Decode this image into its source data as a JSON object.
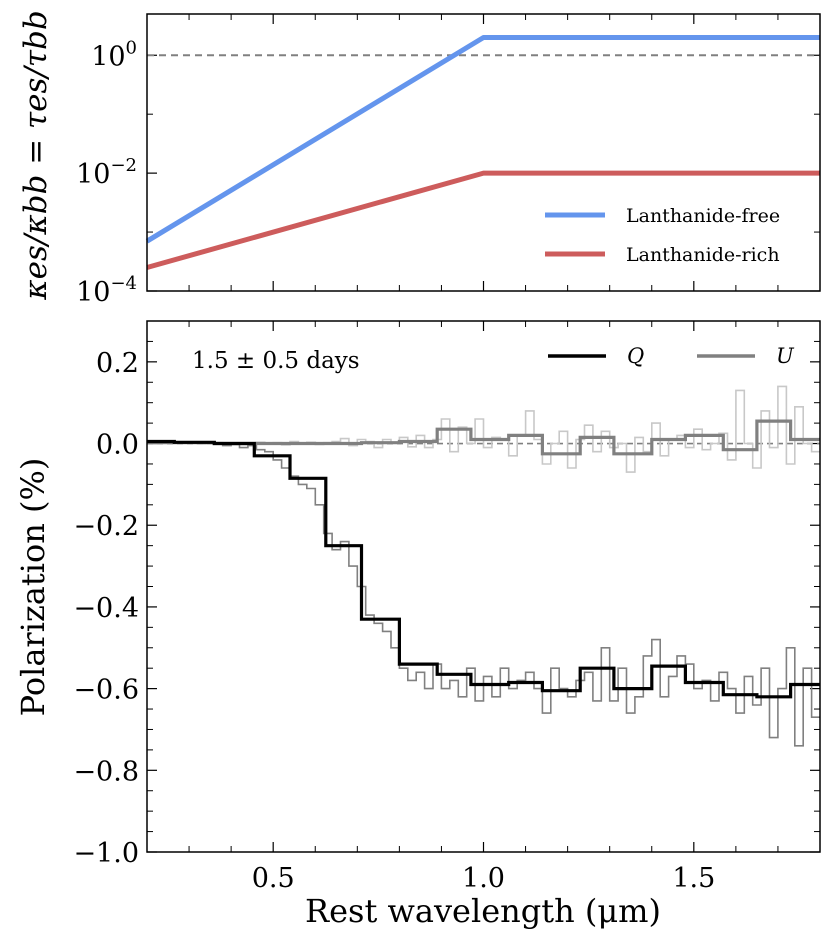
{
  "chart_data": [
    {
      "type": "line",
      "panel": "top",
      "yscale": "log",
      "xlim": [
        0.2,
        1.8
      ],
      "ylim_exp": [
        -4,
        0.7
      ],
      "ylabel": "κes/κbb = τes/τbb",
      "yticks": [
        {
          "exp": 0,
          "label": "10",
          "sup": "0"
        },
        {
          "exp": -2,
          "label": "10",
          "sup": "−2"
        },
        {
          "exp": -4,
          "label": "10",
          "sup": "−4"
        }
      ],
      "reference_line": {
        "y": 1.0,
        "style": "dashed",
        "color": "#808080"
      },
      "series": [
        {
          "name": "Lanthanide-free",
          "color": "#6495ED",
          "points": [
            [
              0.2,
              0.0007
            ],
            [
              1.0,
              2.0
            ],
            [
              1.8,
              2.0
            ]
          ]
        },
        {
          "name": "Lanthanide-rich",
          "color": "#CD5C5C",
          "points": [
            [
              0.2,
              0.00025
            ],
            [
              1.0,
              0.01
            ],
            [
              1.8,
              0.01
            ]
          ]
        }
      ],
      "legend_placement": "lower-right"
    },
    {
      "type": "line",
      "panel": "bottom",
      "xlim": [
        0.2,
        1.8
      ],
      "ylim": [
        -1.0,
        0.3
      ],
      "xlabel": "Rest wavelength (μm)",
      "ylabel": "Polarization (%)",
      "xticks": [
        {
          "v": 0.5,
          "label": "0.5"
        },
        {
          "v": 1.0,
          "label": "1.0"
        },
        {
          "v": 1.5,
          "label": "1.5"
        }
      ],
      "yticks": [
        {
          "v": 0.2,
          "label": "0.2"
        },
        {
          "v": 0.0,
          "label": "0.0"
        },
        {
          "v": -0.2,
          "label": "−0.2"
        },
        {
          "v": -0.4,
          "label": "−0.4"
        },
        {
          "v": -0.6,
          "label": "−0.6"
        },
        {
          "v": -0.8,
          "label": "−0.8"
        },
        {
          "v": -1.0,
          "label": "−1.0"
        }
      ],
      "annotation": "1.5 ± 0.5 days",
      "reference_line": {
        "y": 0.0,
        "style": "dashed",
        "color": "#808080"
      },
      "series": [
        {
          "name": "Q",
          "color": "#000000",
          "style": "binned-step",
          "edges": [
            0.2,
            0.265,
            0.36,
            0.455,
            0.54,
            0.625,
            0.71,
            0.8,
            0.89,
            0.97,
            1.06,
            1.14,
            1.23,
            1.31,
            1.4,
            1.48,
            1.57,
            1.65,
            1.73,
            1.8
          ],
          "values": [
            0.005,
            0.003,
            0.0,
            -0.03,
            -0.085,
            -0.25,
            -0.43,
            -0.54,
            -0.565,
            -0.59,
            -0.585,
            -0.605,
            -0.55,
            -0.6,
            -0.545,
            -0.585,
            -0.615,
            -0.62,
            -0.59
          ]
        },
        {
          "name": "U",
          "color": "#808080",
          "style": "binned-step",
          "edges": [
            0.2,
            0.265,
            0.36,
            0.455,
            0.54,
            0.625,
            0.71,
            0.8,
            0.89,
            0.97,
            1.06,
            1.14,
            1.23,
            1.31,
            1.4,
            1.48,
            1.57,
            1.65,
            1.73,
            1.8
          ],
          "values": [
            0.002,
            0.002,
            0.0,
            0.0,
            0.0,
            0.0,
            0.002,
            0.005,
            0.035,
            0.01,
            0.02,
            -0.025,
            0.015,
            -0.025,
            0.01,
            0.02,
            -0.015,
            0.055,
            0.01
          ]
        },
        {
          "name": "Q (fine)",
          "color": "#808080",
          "style": "binned-step",
          "edges": [
            0.2,
            0.22,
            0.24,
            0.26,
            0.28,
            0.3,
            0.32,
            0.34,
            0.36,
            0.38,
            0.4,
            0.42,
            0.44,
            0.46,
            0.48,
            0.5,
            0.52,
            0.54,
            0.56,
            0.58,
            0.6,
            0.62,
            0.64,
            0.66,
            0.68,
            0.7,
            0.72,
            0.74,
            0.76,
            0.78,
            0.8,
            0.82,
            0.84,
            0.86,
            0.88,
            0.9,
            0.92,
            0.94,
            0.96,
            0.98,
            1.0,
            1.02,
            1.04,
            1.06,
            1.08,
            1.1,
            1.12,
            1.14,
            1.16,
            1.18,
            1.2,
            1.22,
            1.24,
            1.26,
            1.28,
            1.3,
            1.32,
            1.34,
            1.36,
            1.38,
            1.4,
            1.42,
            1.44,
            1.46,
            1.48,
            1.5,
            1.52,
            1.54,
            1.56,
            1.58,
            1.6,
            1.62,
            1.64,
            1.66,
            1.68,
            1.7,
            1.72,
            1.74,
            1.76,
            1.78,
            1.8
          ],
          "values": [
            0.005,
            0.004,
            0.006,
            0.003,
            0.004,
            0.002,
            0.0,
            0.003,
            0.0,
            -0.005,
            -0.002,
            -0.01,
            -0.005,
            -0.015,
            -0.02,
            -0.04,
            -0.06,
            -0.08,
            -0.1,
            -0.11,
            -0.15,
            -0.22,
            -0.26,
            -0.24,
            -0.3,
            -0.35,
            -0.42,
            -0.44,
            -0.46,
            -0.5,
            -0.55,
            -0.58,
            -0.56,
            -0.6,
            -0.54,
            -0.6,
            -0.58,
            -0.62,
            -0.55,
            -0.63,
            -0.57,
            -0.62,
            -0.55,
            -0.6,
            -0.58,
            -0.56,
            -0.6,
            -0.66,
            -0.55,
            -0.6,
            -0.62,
            -0.58,
            -0.56,
            -0.63,
            -0.5,
            -0.63,
            -0.55,
            -0.66,
            -0.62,
            -0.52,
            -0.48,
            -0.62,
            -0.57,
            -0.52,
            -0.54,
            -0.6,
            -0.58,
            -0.63,
            -0.56,
            -0.6,
            -0.66,
            -0.57,
            -0.64,
            -0.55,
            -0.72,
            -0.6,
            -0.5,
            -0.74,
            -0.55,
            -0.67
          ]
        },
        {
          "name": "U (fine)",
          "color": "#c8c8c8",
          "style": "binned-step",
          "edges": [
            0.2,
            0.22,
            0.24,
            0.26,
            0.28,
            0.3,
            0.32,
            0.34,
            0.36,
            0.38,
            0.4,
            0.42,
            0.44,
            0.46,
            0.48,
            0.5,
            0.52,
            0.54,
            0.56,
            0.58,
            0.6,
            0.62,
            0.64,
            0.66,
            0.68,
            0.7,
            0.72,
            0.74,
            0.76,
            0.78,
            0.8,
            0.82,
            0.84,
            0.86,
            0.88,
            0.9,
            0.92,
            0.94,
            0.96,
            0.98,
            1.0,
            1.02,
            1.04,
            1.06,
            1.08,
            1.1,
            1.12,
            1.14,
            1.16,
            1.18,
            1.2,
            1.22,
            1.24,
            1.26,
            1.28,
            1.3,
            1.32,
            1.34,
            1.36,
            1.38,
            1.4,
            1.42,
            1.44,
            1.46,
            1.48,
            1.5,
            1.52,
            1.54,
            1.56,
            1.58,
            1.6,
            1.62,
            1.64,
            1.66,
            1.68,
            1.7,
            1.72,
            1.74,
            1.76,
            1.78,
            1.8
          ],
          "values": [
            0.003,
            0.002,
            0.004,
            0.001,
            0.003,
            0.002,
            0.0,
            0.001,
            0.002,
            0.0,
            0.001,
            -0.002,
            0.0,
            0.003,
            0.0,
            0.002,
            -0.003,
            0.005,
            0.0,
            0.003,
            -0.002,
            0.002,
            0.005,
            0.012,
            -0.005,
            0.01,
            0.005,
            -0.01,
            0.01,
            0.003,
            0.015,
            -0.008,
            0.02,
            -0.01,
            0.01,
            0.06,
            -0.02,
            0.04,
            0.0,
            0.06,
            -0.01,
            0.015,
            0.01,
            -0.03,
            0.02,
            0.08,
            0.01,
            -0.05,
            0.0,
            0.03,
            -0.06,
            0.01,
            0.045,
            -0.02,
            0.03,
            -0.01,
            0.0,
            -0.07,
            0.015,
            -0.02,
            0.05,
            -0.03,
            0.01,
            0.02,
            -0.01,
            0.035,
            -0.015,
            0.0,
            0.025,
            -0.04,
            0.13,
            0.0,
            -0.06,
            0.08,
            -0.01,
            0.14,
            -0.05,
            0.09,
            0.0,
            -0.02
          ]
        }
      ],
      "legend": [
        {
          "name": "Q",
          "color": "#000000"
        },
        {
          "name": "U",
          "color": "#808080"
        }
      ],
      "legend_placement": "top-right"
    }
  ]
}
